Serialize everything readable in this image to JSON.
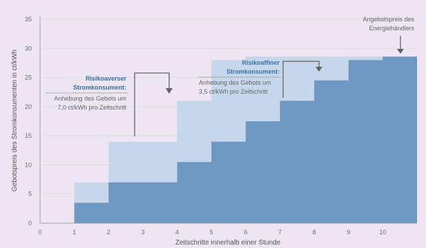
{
  "chart_data": {
    "type": "area",
    "xlabel": "Zeitschritte innerhalb einer Stunde",
    "ylabel": "Gebotspreis des Stromkonsumenten in ct/kWh",
    "xlim": [
      0,
      11
    ],
    "ylim": [
      0,
      35
    ],
    "xticks": [
      0,
      1,
      2,
      3,
      4,
      5,
      6,
      7,
      8,
      9,
      10
    ],
    "yticks": [
      0,
      5,
      10,
      15,
      20,
      25,
      30,
      35
    ],
    "grid": "horizontal",
    "series": [
      {
        "name": "Risikoaverser Stromkonsument",
        "color": "#c6d7ec",
        "x": [
          1,
          2,
          3,
          4,
          5,
          6,
          7,
          8,
          9,
          10,
          11
        ],
        "values": [
          7.0,
          14.0,
          14.0,
          21.0,
          28.0,
          28.6,
          28.6,
          28.6,
          28.6,
          28.6,
          28.6
        ]
      },
      {
        "name": "Risikoaffiner Stromkonsument",
        "color": "#6e97c2",
        "x": [
          1,
          2,
          3,
          4,
          5,
          6,
          7,
          8,
          9,
          10,
          11
        ],
        "values": [
          3.5,
          7.0,
          7.0,
          10.5,
          14.0,
          17.5,
          21.0,
          24.5,
          28.0,
          28.6,
          28.6
        ]
      }
    ],
    "offer_price": 28.6,
    "annotations": {
      "averse": {
        "head": [
          "Risikoaverser",
          "Stromkonsument:"
        ],
        "body": [
          "Anhebung des Gebots um",
          "7,0 ct/kWh pro Zeitschritt"
        ]
      },
      "affine": {
        "head": [
          "Risikoaffiner",
          "Stromkonsument:"
        ],
        "body": [
          "Anhebung des Gebots um",
          "3,5 ct/kWh pro Zeitschritt"
        ]
      },
      "offer": {
        "lines": [
          "Angebotspreis des",
          "Energiehändlers"
        ]
      }
    }
  }
}
